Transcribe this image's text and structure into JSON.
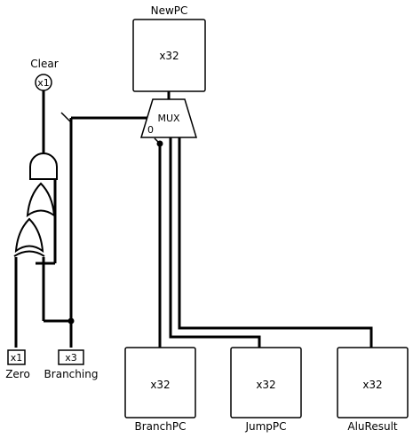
{
  "title": "",
  "pins": {
    "newpc": {
      "label": "NewPC",
      "width": "x32"
    },
    "clear": {
      "label": "Clear",
      "width": "x1"
    },
    "zero": {
      "label": "Zero",
      "width": "x1"
    },
    "branching": {
      "label": "Branching",
      "width": "x3"
    },
    "branchpc": {
      "label": "BranchPC",
      "width": "x32"
    },
    "jumppc": {
      "label": "JumpPC",
      "width": "x32"
    },
    "aluresult": {
      "label": "AluResult",
      "width": "x32"
    }
  },
  "mux": {
    "label": "MUX",
    "select_index": "0"
  }
}
